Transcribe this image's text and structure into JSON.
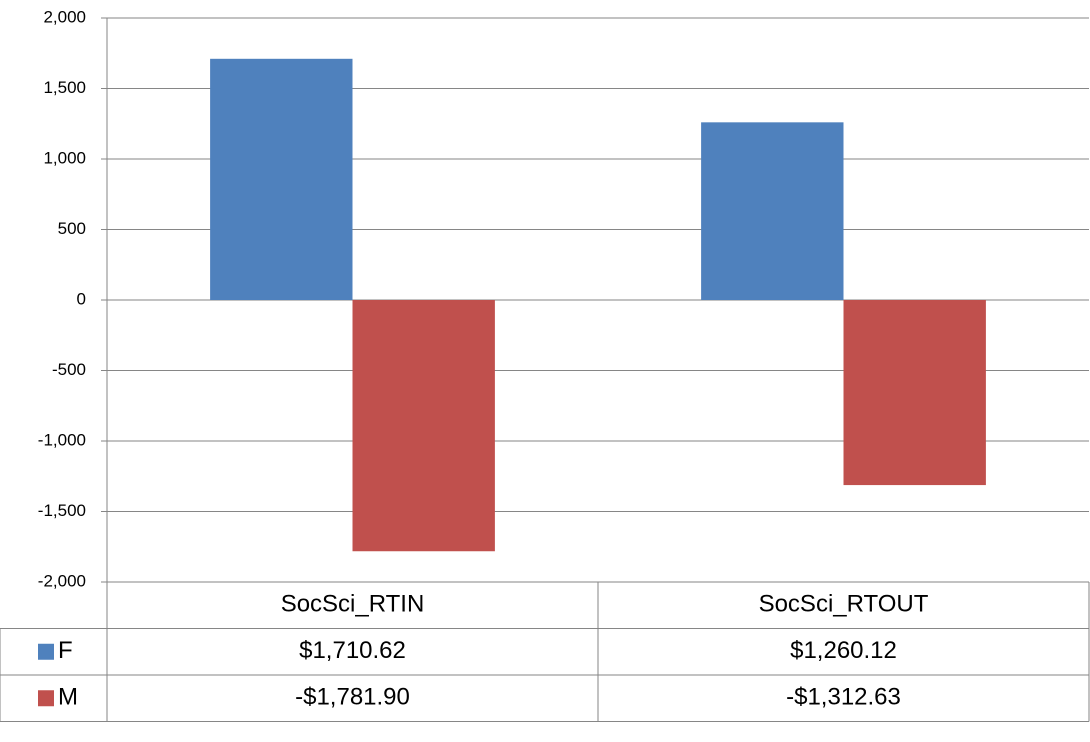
{
  "chart_data": {
    "type": "bar",
    "categories": [
      "SocSci_RTIN",
      "SocSci_RTOUT"
    ],
    "series": [
      {
        "name": "F",
        "color": "#4f81bd",
        "values": [
          1710.62,
          1260.12
        ],
        "value_labels": [
          "$1,710.62",
          "$1,260.12"
        ]
      },
      {
        "name": "M",
        "color": "#c0504d",
        "values": [
          -1781.9,
          -1312.63
        ],
        "value_labels": [
          "-$1,781.90",
          "-$1,312.63"
        ]
      }
    ],
    "ylim": [
      -2000,
      2000
    ],
    "yticks": [
      {
        "value": -2000,
        "label": "-2,000"
      },
      {
        "value": -1500,
        "label": "-1,500"
      },
      {
        "value": -1000,
        "label": "-1,000"
      },
      -500,
      0,
      500,
      {
        "value": 1000,
        "label": "1,000"
      },
      {
        "value": 1500,
        "label": "1,500"
      },
      {
        "value": 2000,
        "label": "2,000"
      }
    ],
    "grid": true
  }
}
